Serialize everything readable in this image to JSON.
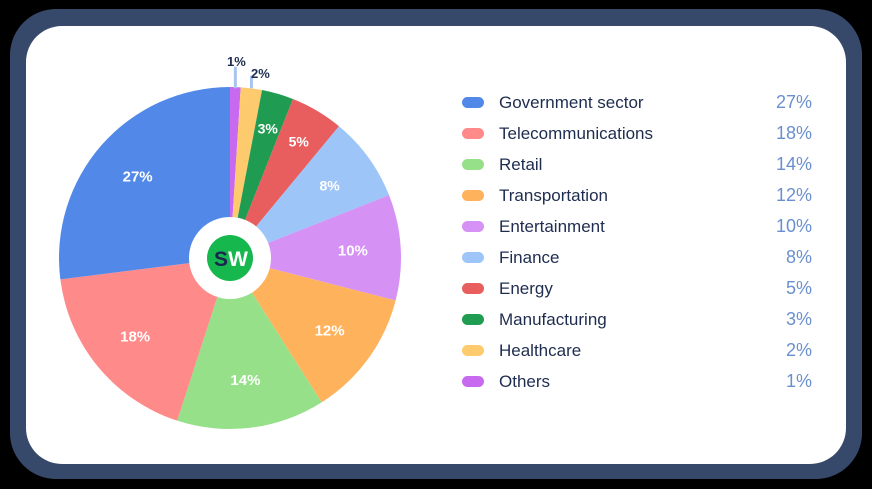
{
  "chart_data": {
    "type": "pie",
    "title": "",
    "start_angle_deg": 0,
    "direction": "clockwise",
    "center_logo": "SW",
    "slices": [
      {
        "label": "Others",
        "value": 1,
        "display": "1%",
        "color": "#c86af0"
      },
      {
        "label": "Healthcare",
        "value": 2,
        "display": "2%",
        "color": "#fdcb6e"
      },
      {
        "label": "Manufacturing",
        "value": 3,
        "display": "3%",
        "color": "#1f9c52"
      },
      {
        "label": "Energy",
        "value": 5,
        "display": "5%",
        "color": "#e85d5d"
      },
      {
        "label": "Finance",
        "value": 8,
        "display": "8%",
        "color": "#9ec5f8"
      },
      {
        "label": "Entertainment",
        "value": 10,
        "display": "10%",
        "color": "#d591f4"
      },
      {
        "label": "Transportation",
        "value": 12,
        "display": "12%",
        "color": "#ffb25c"
      },
      {
        "label": "Retail",
        "value": 14,
        "display": "14%",
        "color": "#97e08a"
      },
      {
        "label": "Telecommunications",
        "value": 18,
        "display": "18%",
        "color": "#ff8a8a"
      },
      {
        "label": "Government sector",
        "value": 27,
        "display": "27%",
        "color": "#5289e8"
      }
    ],
    "legend_position": "right",
    "legend": [
      {
        "label": "Government sector",
        "value": "27%",
        "color": "#5289e8"
      },
      {
        "label": "Telecommunications",
        "value": "18%",
        "color": "#ff8a8a"
      },
      {
        "label": "Retail",
        "value": "14%",
        "color": "#97e08a"
      },
      {
        "label": "Transportation",
        "value": "12%",
        "color": "#ffb25c"
      },
      {
        "label": "Entertainment",
        "value": "10%",
        "color": "#d591f4"
      },
      {
        "label": "Finance",
        "value": "8%",
        "color": "#9ec5f8"
      },
      {
        "label": "Energy",
        "value": "5%",
        "color": "#e85d5d"
      },
      {
        "label": "Manufacturing",
        "value": "3%",
        "color": "#1f9c52"
      },
      {
        "label": "Healthcare",
        "value": "2%",
        "color": "#fdcb6e"
      },
      {
        "label": "Others",
        "value": "1%",
        "color": "#c86af0"
      }
    ]
  },
  "logo": {
    "text_s": "S",
    "text_w": "W"
  },
  "colors": {
    "frame": "#37496a",
    "card": "#ffffff",
    "legend_text": "#1e2c4f",
    "legend_value": "#6a8fcf",
    "leader_line": "#a9c4f0"
  }
}
